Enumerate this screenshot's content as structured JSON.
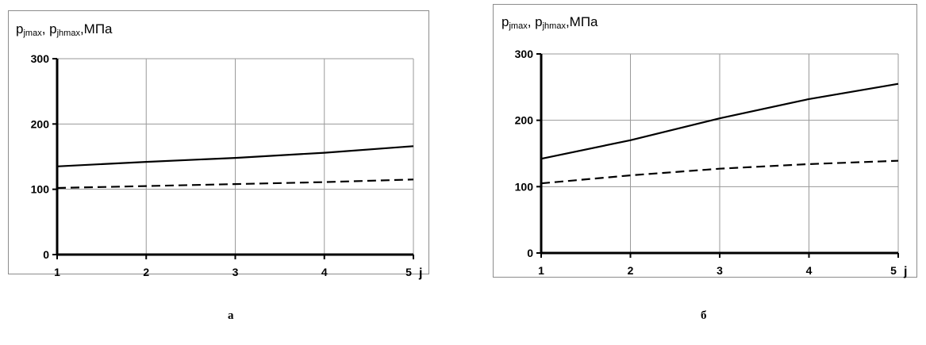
{
  "captions": [
    "а",
    "б"
  ],
  "chart_data": [
    {
      "type": "line",
      "ylabel_main": "p",
      "ylabel_sub1": "jmax",
      "ylabel_sep": ", p",
      "ylabel_sub2": "jhmax",
      "ylabel_unit": ",МПа",
      "xlabel": "j",
      "x": [
        1,
        2,
        3,
        4,
        5
      ],
      "xticks": [
        "1",
        "2",
        "3",
        "4",
        "5"
      ],
      "yticks": [
        "0",
        "100",
        "200",
        "300"
      ],
      "ylim": [
        0,
        300
      ],
      "xlim": [
        1,
        5
      ],
      "grid": true,
      "series": [
        {
          "style": "solid",
          "values": [
            135,
            142,
            148,
            156,
            166
          ]
        },
        {
          "style": "dashed",
          "values": [
            102,
            105,
            108,
            111,
            115
          ]
        }
      ]
    },
    {
      "type": "line",
      "ylabel_main": "p",
      "ylabel_sub1": "jmax",
      "ylabel_sep": ", p",
      "ylabel_sub2": "jhmax",
      "ylabel_unit": ",МПа",
      "xlabel": "j",
      "x": [
        1,
        2,
        3,
        4,
        5
      ],
      "xticks": [
        "1",
        "2",
        "3",
        "4",
        "5"
      ],
      "yticks": [
        "0",
        "100",
        "200",
        "300"
      ],
      "ylim": [
        0,
        300
      ],
      "xlim": [
        1,
        5
      ],
      "grid": true,
      "series": [
        {
          "style": "solid",
          "values": [
            142,
            170,
            203,
            232,
            255
          ]
        },
        {
          "style": "dashed",
          "values": [
            105,
            117,
            127,
            134,
            139
          ]
        }
      ]
    }
  ]
}
